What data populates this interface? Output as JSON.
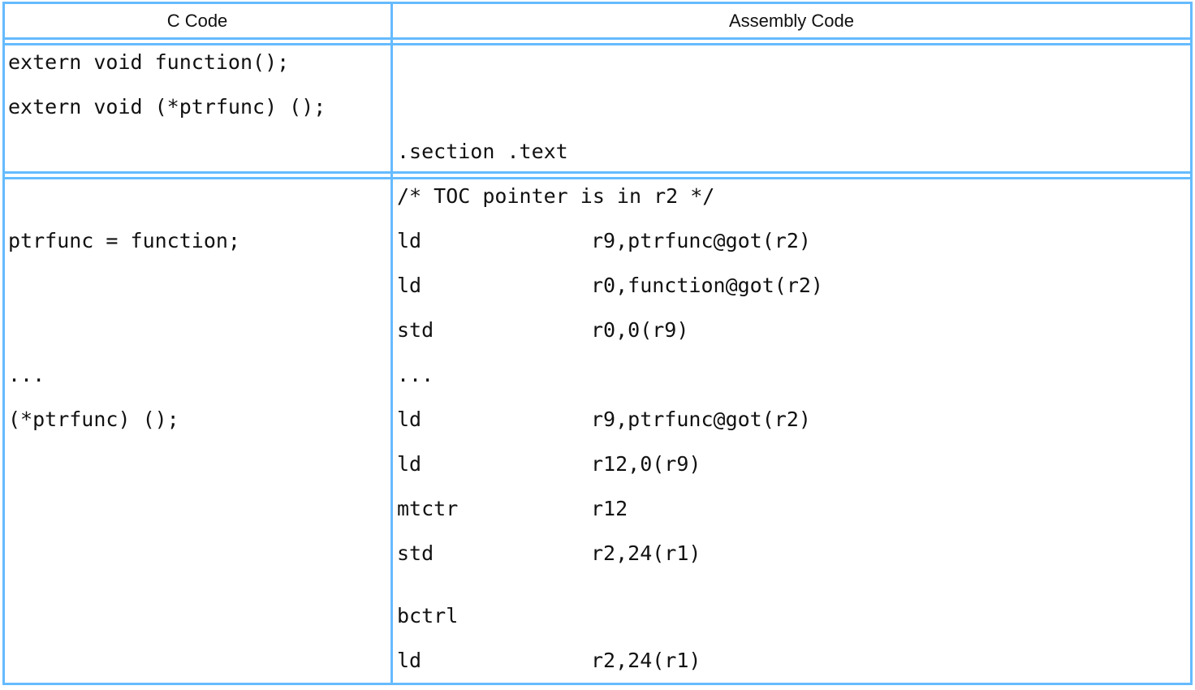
{
  "table": {
    "headers": [
      "C Code",
      "Assembly Code"
    ],
    "border_color": "#66bbff",
    "c_code": [
      {
        "text": "extern void function();",
        "row": 0
      },
      {
        "text": "extern void (*ptrfunc) ();",
        "row": 1
      },
      {
        "text": "ptrfunc = function;",
        "row": 4
      },
      {
        "text": "...",
        "row": 7
      },
      {
        "text": "(*ptrfunc) ();",
        "row": 8
      }
    ],
    "assembly": [
      {
        "mnemonic": ".section .text",
        "operands": "",
        "row": 2
      },
      {
        "mnemonic": "/* TOC pointer is in r2 */",
        "operands": "",
        "row": 3
      },
      {
        "mnemonic": "ld",
        "operands": "r9,ptrfunc@got(r2)",
        "row": 4
      },
      {
        "mnemonic": "ld",
        "operands": "r0,function@got(r2)",
        "row": 5
      },
      {
        "mnemonic": "std",
        "operands": "r0,0(r9)",
        "row": 6
      },
      {
        "mnemonic": "...",
        "operands": "",
        "row": 7
      },
      {
        "mnemonic": "ld",
        "operands": "r9,ptrfunc@got(r2)",
        "row": 8
      },
      {
        "mnemonic": "ld",
        "operands": "r12,0(r9)",
        "row": 9
      },
      {
        "mnemonic": "mtctr",
        "operands": "r12",
        "row": 10
      },
      {
        "mnemonic": "std",
        "operands": "r2,24(r1)",
        "row": 11
      },
      {
        "mnemonic": "bctrl",
        "operands": "",
        "row": 12
      },
      {
        "mnemonic": "ld",
        "operands": "r2,24(r1)",
        "row": 13
      }
    ]
  }
}
